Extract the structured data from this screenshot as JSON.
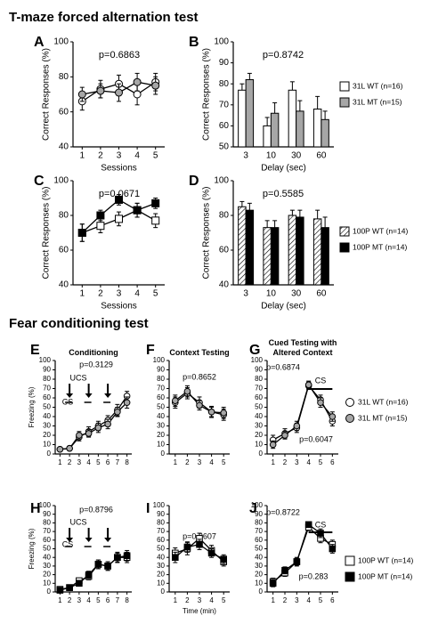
{
  "headings": [
    "T-maze forced alternation test",
    "Fear conditioning test"
  ],
  "chart_data": [
    {
      "type": "line",
      "label": "A",
      "xlabel": "Sessions",
      "ylabel": "Correct Responses (%)",
      "annotations": [
        "p=0.6863"
      ],
      "x": [
        1,
        2,
        3,
        4,
        5
      ],
      "xlim": [
        0.5,
        5.5
      ],
      "xticks": [
        1,
        2,
        3,
        4,
        5
      ],
      "ylim": [
        40,
        100
      ],
      "yticks": [
        40,
        60,
        80,
        100
      ],
      "series": [
        {
          "color": "#ffffff",
          "marker": "circle",
          "values": [
            66,
            73,
            76,
            70,
            77
          ],
          "errors": [
            5,
            5,
            5,
            6,
            5
          ]
        },
        {
          "color": "#a6a6a6",
          "marker": "circle",
          "values": [
            70,
            72,
            71,
            77,
            75
          ],
          "errors": [
            4,
            4,
            5,
            5,
            5
          ]
        }
      ]
    },
    {
      "type": "bar",
      "label": "B",
      "xlabel": "Delay (sec)",
      "ylabel": "Correct Responses (%)",
      "annotations": [
        "p=0.8742"
      ],
      "categories": [
        "3",
        "10",
        "30",
        "60"
      ],
      "ylim": [
        50,
        100
      ],
      "yticks": [
        50,
        60,
        70,
        80,
        90,
        100
      ],
      "legend": "right",
      "series": [
        {
          "name": "31L WT (n=16)",
          "color": "#ffffff",
          "values": [
            77,
            60,
            77,
            68
          ],
          "errors": [
            3,
            4,
            4,
            6
          ]
        },
        {
          "name": "31L MT (n=15)",
          "color": "#a6a6a6",
          "values": [
            82,
            66,
            67,
            63
          ],
          "errors": [
            3,
            5,
            5,
            4
          ]
        }
      ]
    },
    {
      "type": "line",
      "label": "C",
      "xlabel": "Sessions",
      "ylabel": "Correct Responses (%)",
      "annotations": [
        "p=0.0671"
      ],
      "x": [
        1,
        2,
        3,
        4,
        5
      ],
      "xlim": [
        0.5,
        5.5
      ],
      "xticks": [
        1,
        2,
        3,
        4,
        5
      ],
      "ylim": [
        40,
        100
      ],
      "yticks": [
        40,
        60,
        80,
        100
      ],
      "series": [
        {
          "color": "#ffffff",
          "marker": "square",
          "values": [
            70,
            74,
            78,
            83,
            77
          ],
          "errors": [
            5,
            4,
            4,
            4,
            4
          ]
        },
        {
          "color": "#000000",
          "marker": "square",
          "values": [
            70,
            80,
            89,
            83,
            87
          ],
          "errors": [
            5,
            3,
            3,
            4,
            3
          ]
        }
      ]
    },
    {
      "type": "bar",
      "label": "D",
      "xlabel": "Delay (sec)",
      "ylabel": "Correct Responses (%)",
      "annotations": [
        "p=0.5585"
      ],
      "categories": [
        "3",
        "10",
        "30",
        "60"
      ],
      "ylim": [
        40,
        100
      ],
      "yticks": [
        40,
        60,
        80,
        100
      ],
      "legend": "right",
      "series": [
        {
          "name": "100P WT (n=14)",
          "color": "#ffffff",
          "hatch": true,
          "values": [
            85,
            73,
            80,
            78
          ],
          "errors": [
            3,
            4,
            3,
            5
          ]
        },
        {
          "name": "100P MT (n=14)",
          "color": "#000000",
          "values": [
            83,
            73,
            79,
            73
          ],
          "errors": [
            4,
            4,
            4,
            6
          ]
        }
      ]
    },
    {
      "type": "line",
      "label": "E",
      "title": "Conditioning",
      "ylabel": "Freezing (%)",
      "annotations": [
        "p=0.3129",
        "UCS",
        "CS"
      ],
      "x": [
        1,
        2,
        3,
        4,
        5,
        6,
        7,
        8
      ],
      "xlim": [
        0.5,
        8.5
      ],
      "xticks": [
        1,
        2,
        3,
        4,
        5,
        6,
        7,
        8
      ],
      "ylim": [
        0,
        100
      ],
      "yticks": [
        0,
        10,
        20,
        30,
        40,
        50,
        60,
        70,
        80,
        90,
        100
      ],
      "series": [
        {
          "color": "#ffffff",
          "marker": "circle",
          "values": [
            5,
            6,
            18,
            24,
            30,
            36,
            47,
            62
          ],
          "errors": [
            2,
            2,
            4,
            5,
            5,
            5,
            6,
            5
          ]
        },
        {
          "color": "#a6a6a6",
          "marker": "circle",
          "values": [
            5,
            6,
            20,
            22,
            28,
            32,
            45,
            55
          ],
          "errors": [
            2,
            2,
            4,
            4,
            5,
            5,
            5,
            6
          ]
        }
      ]
    },
    {
      "type": "line",
      "label": "F",
      "title": "Context Testing",
      "annotations": [
        "p=0.8652"
      ],
      "x": [
        1,
        2,
        3,
        4,
        5
      ],
      "xlim": [
        0.5,
        5.5
      ],
      "xticks": [
        1,
        2,
        3,
        4,
        5
      ],
      "ylim": [
        0,
        100
      ],
      "yticks": [
        0,
        10,
        20,
        30,
        40,
        50,
        60,
        70,
        80,
        90,
        100
      ],
      "series": [
        {
          "color": "#ffffff",
          "marker": "circle",
          "values": [
            55,
            65,
            55,
            45,
            42
          ],
          "errors": [
            6,
            6,
            6,
            6,
            6
          ]
        },
        {
          "color": "#a6a6a6",
          "marker": "circle",
          "values": [
            57,
            67,
            52,
            45,
            44
          ],
          "errors": [
            6,
            6,
            5,
            5,
            6
          ]
        }
      ]
    },
    {
      "type": "line",
      "label": "G",
      "title": "Cued Testing with Altered Context",
      "annotations": [
        "p=0.6874",
        "CS",
        "p=0.6047"
      ],
      "x": [
        1,
        2,
        3,
        4,
        5,
        6
      ],
      "xlim": [
        0.5,
        6.5
      ],
      "xticks": [
        1,
        2,
        3,
        4,
        5,
        6
      ],
      "ylim": [
        0,
        100
      ],
      "yticks": [
        0,
        10,
        20,
        30,
        40,
        50,
        60,
        70,
        80,
        90,
        100
      ],
      "legend": "right",
      "series": [
        {
          "name": "31L WT (n=16)",
          "color": "#ffffff",
          "marker": "circle",
          "values": [
            15,
            22,
            28,
            73,
            58,
            35
          ],
          "errors": [
            5,
            5,
            5,
            4,
            5,
            5
          ]
        },
        {
          "name": "31L MT (n=15)",
          "color": "#a6a6a6",
          "marker": "circle",
          "values": [
            10,
            20,
            30,
            74,
            55,
            40
          ],
          "errors": [
            4,
            4,
            5,
            4,
            5,
            5
          ]
        }
      ]
    },
    {
      "type": "line",
      "label": "H",
      "ylabel": "Freezing (%)",
      "annotations": [
        "p=0.8796",
        "UCS",
        "CS"
      ],
      "x": [
        1,
        2,
        3,
        4,
        5,
        6,
        7,
        8
      ],
      "xlim": [
        0.5,
        8.5
      ],
      "xticks": [
        1,
        2,
        3,
        4,
        5,
        6,
        7,
        8
      ],
      "ylim": [
        0,
        100
      ],
      "yticks": [
        0,
        10,
        20,
        30,
        40,
        50,
        60,
        70,
        80,
        90,
        100
      ],
      "series": [
        {
          "color": "#ffffff",
          "marker": "square",
          "values": [
            3,
            5,
            13,
            18,
            32,
            30,
            40,
            40
          ],
          "errors": [
            2,
            2,
            3,
            4,
            5,
            5,
            6,
            6
          ]
        },
        {
          "color": "#000000",
          "marker": "square",
          "values": [
            2,
            5,
            10,
            20,
            32,
            30,
            40,
            42
          ],
          "errors": [
            2,
            2,
            3,
            4,
            5,
            5,
            5,
            6
          ]
        }
      ]
    },
    {
      "type": "line",
      "label": "I",
      "xlabel": "Time (min)",
      "annotations": [
        "p=0.8607"
      ],
      "x": [
        1,
        2,
        3,
        4,
        5
      ],
      "xlim": [
        0.5,
        5.5
      ],
      "xticks": [
        1,
        2,
        3,
        4,
        5
      ],
      "ylim": [
        0,
        100
      ],
      "yticks": [
        0,
        10,
        20,
        30,
        40,
        50,
        60,
        70,
        80,
        90,
        100
      ],
      "series": [
        {
          "color": "#ffffff",
          "marker": "square",
          "values": [
            45,
            50,
            62,
            48,
            35
          ],
          "errors": [
            6,
            7,
            6,
            6,
            5
          ]
        },
        {
          "color": "#000000",
          "marker": "square",
          "values": [
            40,
            52,
            55,
            45,
            38
          ],
          "errors": [
            6,
            6,
            6,
            5,
            5
          ]
        }
      ]
    },
    {
      "type": "line",
      "label": "J",
      "annotations": [
        "p=0.8722",
        "CS",
        "p=0.283"
      ],
      "x": [
        1,
        2,
        3,
        4,
        5,
        6
      ],
      "xlim": [
        0.5,
        6.5
      ],
      "xticks": [
        1,
        2,
        3,
        4,
        5,
        6
      ],
      "ylim": [
        0,
        100
      ],
      "yticks": [
        0,
        10,
        20,
        30,
        40,
        50,
        60,
        70,
        80,
        90,
        100
      ],
      "legend": "right",
      "series": [
        {
          "name": "100P WT (n=14)",
          "color": "#ffffff",
          "marker": "square",
          "values": [
            12,
            22,
            35,
            75,
            62,
            55
          ],
          "errors": [
            4,
            4,
            5,
            4,
            5,
            5
          ]
        },
        {
          "name": "100P MT (n=14)",
          "color": "#000000",
          "marker": "square",
          "values": [
            10,
            25,
            35,
            78,
            68,
            50
          ],
          "errors": [
            4,
            4,
            4,
            3,
            5,
            5
          ]
        }
      ]
    }
  ]
}
